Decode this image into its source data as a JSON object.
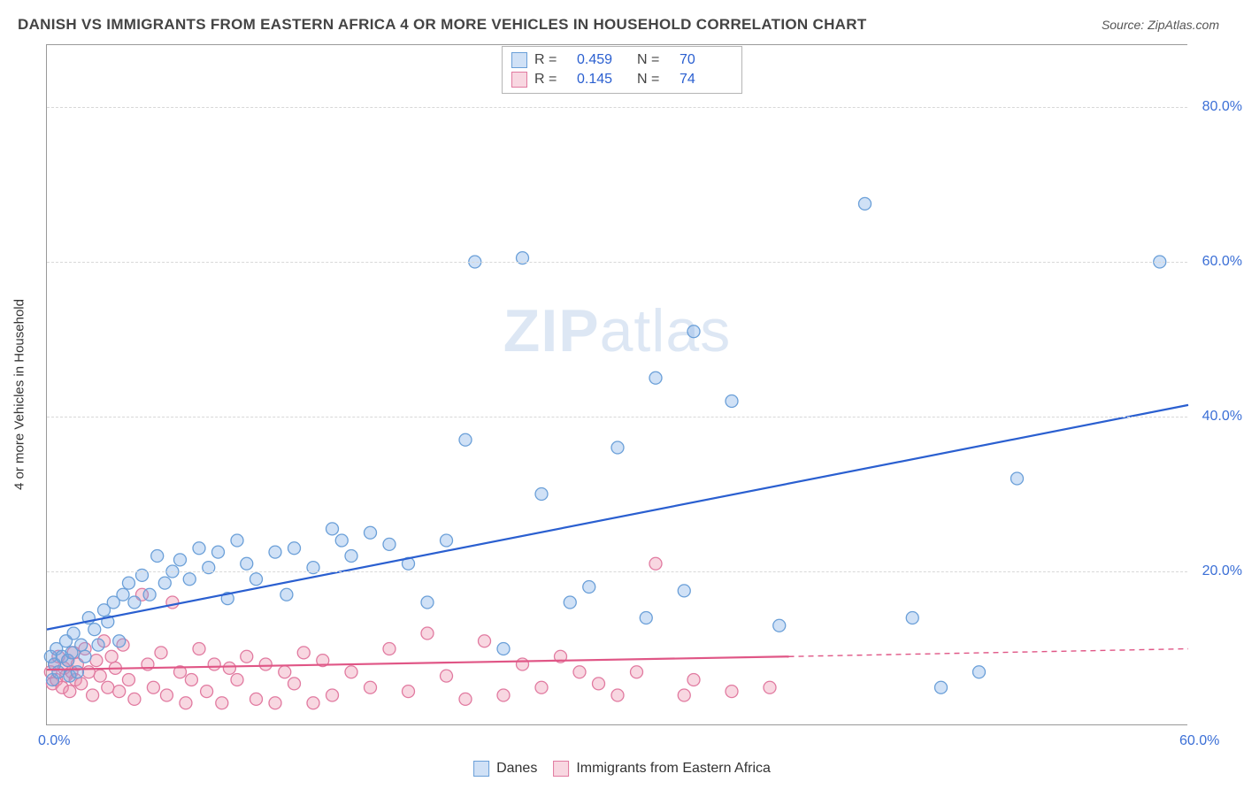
{
  "title": "DANISH VS IMMIGRANTS FROM EASTERN AFRICA 4 OR MORE VEHICLES IN HOUSEHOLD CORRELATION CHART",
  "source": "Source: ZipAtlas.com",
  "ylabel": "4 or more Vehicles in Household",
  "watermark_a": "ZIP",
  "watermark_b": "atlas",
  "chart": {
    "type": "scatter",
    "xlim": [
      0,
      60
    ],
    "ylim": [
      0,
      88
    ],
    "yticks": [
      20,
      40,
      60,
      80
    ],
    "ytick_labels": [
      "20.0%",
      "40.0%",
      "60.0%",
      "80.0%"
    ],
    "xticks": [
      0,
      60
    ],
    "xtick_labels": [
      "0.0%",
      "60.0%"
    ],
    "background": "#ffffff",
    "grid_color": "#d8d8d8",
    "marker_radius": 7,
    "marker_stroke_width": 1.3,
    "series": [
      {
        "name": "Danes",
        "fill": "rgba(120,170,230,0.35)",
        "stroke": "#6a9fd8",
        "line_color": "#2a5fd0",
        "line_width": 2.2,
        "R": "0.459",
        "N": "70",
        "trend": {
          "x1": 0,
          "y1": 12.5,
          "x2": 60,
          "y2": 41.5,
          "dashed_from": 60
        },
        "points": [
          [
            0.2,
            9
          ],
          [
            0.3,
            6
          ],
          [
            0.4,
            8
          ],
          [
            0.5,
            10
          ],
          [
            0.6,
            7
          ],
          [
            0.8,
            9
          ],
          [
            1.0,
            11
          ],
          [
            1.1,
            8.5
          ],
          [
            1.2,
            6.5
          ],
          [
            1.3,
            9.5
          ],
          [
            1.4,
            12
          ],
          [
            1.6,
            7
          ],
          [
            1.8,
            10.5
          ],
          [
            2.0,
            9
          ],
          [
            2.2,
            14
          ],
          [
            2.5,
            12.5
          ],
          [
            2.7,
            10.5
          ],
          [
            3.0,
            15
          ],
          [
            3.2,
            13.5
          ],
          [
            3.5,
            16
          ],
          [
            3.8,
            11
          ],
          [
            4.0,
            17
          ],
          [
            4.3,
            18.5
          ],
          [
            4.6,
            16
          ],
          [
            5.0,
            19.5
          ],
          [
            5.4,
            17
          ],
          [
            5.8,
            22
          ],
          [
            6.2,
            18.5
          ],
          [
            6.6,
            20
          ],
          [
            7.0,
            21.5
          ],
          [
            7.5,
            19
          ],
          [
            8.0,
            23
          ],
          [
            8.5,
            20.5
          ],
          [
            9.0,
            22.5
          ],
          [
            9.5,
            16.5
          ],
          [
            10.0,
            24
          ],
          [
            10.5,
            21
          ],
          [
            11.0,
            19
          ],
          [
            12.0,
            22.5
          ],
          [
            12.6,
            17
          ],
          [
            13.0,
            23
          ],
          [
            14.0,
            20.5
          ],
          [
            15.0,
            25.5
          ],
          [
            15.5,
            24
          ],
          [
            16.0,
            22
          ],
          [
            17.0,
            25
          ],
          [
            18.0,
            23.5
          ],
          [
            19.0,
            21
          ],
          [
            20.0,
            16
          ],
          [
            21.0,
            24
          ],
          [
            22.0,
            37
          ],
          [
            22.5,
            60
          ],
          [
            24.0,
            10
          ],
          [
            25.0,
            60.5
          ],
          [
            26.0,
            30
          ],
          [
            27.5,
            16
          ],
          [
            28.5,
            18
          ],
          [
            30.0,
            36
          ],
          [
            31.5,
            14
          ],
          [
            32.0,
            45
          ],
          [
            33.5,
            17.5
          ],
          [
            34.0,
            51
          ],
          [
            36.0,
            42
          ],
          [
            38.5,
            13
          ],
          [
            43.0,
            67.5
          ],
          [
            45.5,
            14
          ],
          [
            47.0,
            5
          ],
          [
            51.0,
            32
          ],
          [
            58.5,
            60
          ],
          [
            49.0,
            7
          ]
        ]
      },
      {
        "name": "Immigrants from Eastern Africa",
        "fill": "rgba(235,140,170,0.35)",
        "stroke": "#e17aa0",
        "line_color": "#e05686",
        "line_width": 2.2,
        "R": "0.145",
        "N": "74",
        "trend": {
          "x1": 0,
          "y1": 7.3,
          "x2": 39,
          "y2": 9.0,
          "dashed_to_x": 60,
          "dashed_to_y": 10.0
        },
        "points": [
          [
            0.2,
            7
          ],
          [
            0.3,
            5.5
          ],
          [
            0.4,
            8
          ],
          [
            0.5,
            6
          ],
          [
            0.6,
            9
          ],
          [
            0.8,
            5
          ],
          [
            0.9,
            7.5
          ],
          [
            1.0,
            6.5
          ],
          [
            1.1,
            8.5
          ],
          [
            1.2,
            4.5
          ],
          [
            1.3,
            7
          ],
          [
            1.4,
            9.5
          ],
          [
            1.5,
            6
          ],
          [
            1.6,
            8
          ],
          [
            1.8,
            5.5
          ],
          [
            2.0,
            10
          ],
          [
            2.2,
            7
          ],
          [
            2.4,
            4
          ],
          [
            2.6,
            8.5
          ],
          [
            2.8,
            6.5
          ],
          [
            3.0,
            11
          ],
          [
            3.2,
            5
          ],
          [
            3.4,
            9
          ],
          [
            3.6,
            7.5
          ],
          [
            3.8,
            4.5
          ],
          [
            4.0,
            10.5
          ],
          [
            4.3,
            6
          ],
          [
            4.6,
            3.5
          ],
          [
            5.0,
            17
          ],
          [
            5.3,
            8
          ],
          [
            5.6,
            5
          ],
          [
            6.0,
            9.5
          ],
          [
            6.3,
            4
          ],
          [
            6.6,
            16
          ],
          [
            7.0,
            7
          ],
          [
            7.3,
            3
          ],
          [
            7.6,
            6
          ],
          [
            8.0,
            10
          ],
          [
            8.4,
            4.5
          ],
          [
            8.8,
            8
          ],
          [
            9.2,
            3
          ],
          [
            9.6,
            7.5
          ],
          [
            10.0,
            6
          ],
          [
            10.5,
            9
          ],
          [
            11.0,
            3.5
          ],
          [
            11.5,
            8
          ],
          [
            12.0,
            3
          ],
          [
            12.5,
            7
          ],
          [
            13.0,
            5.5
          ],
          [
            13.5,
            9.5
          ],
          [
            14.0,
            3
          ],
          [
            14.5,
            8.5
          ],
          [
            15.0,
            4
          ],
          [
            16.0,
            7
          ],
          [
            17.0,
            5
          ],
          [
            18.0,
            10
          ],
          [
            19.0,
            4.5
          ],
          [
            20.0,
            12
          ],
          [
            21.0,
            6.5
          ],
          [
            22.0,
            3.5
          ],
          [
            23.0,
            11
          ],
          [
            24.0,
            4
          ],
          [
            25.0,
            8
          ],
          [
            26.0,
            5
          ],
          [
            28.0,
            7
          ],
          [
            30.0,
            4
          ],
          [
            32.0,
            21
          ],
          [
            34.0,
            6
          ],
          [
            36.0,
            4.5
          ],
          [
            33.5,
            4
          ],
          [
            27.0,
            9
          ],
          [
            29.0,
            5.5
          ],
          [
            31.0,
            7
          ],
          [
            38.0,
            5
          ]
        ]
      }
    ]
  },
  "legend_top": {
    "r_label": "R =",
    "n_label": "N ="
  },
  "legend_bottom": {
    "series1": "Danes",
    "series2": "Immigrants from Eastern Africa"
  }
}
